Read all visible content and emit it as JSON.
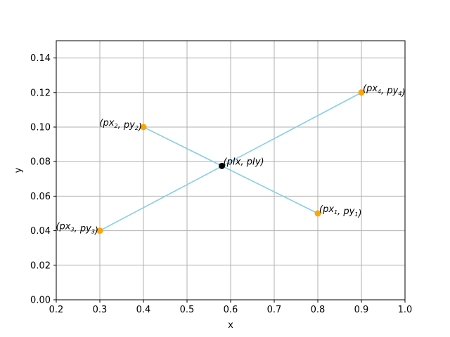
{
  "chart_data": {
    "type": "line",
    "title": "",
    "xlabel": "x",
    "ylabel": "y",
    "xlim": [
      0.2,
      1.0
    ],
    "ylim": [
      0.0,
      0.15
    ],
    "xticks": [
      0.2,
      0.3,
      0.4,
      0.5,
      0.6,
      0.7,
      0.8,
      0.9,
      1.0
    ],
    "xtick_labels": [
      "0.2",
      "0.3",
      "0.4",
      "0.5",
      "0.6",
      "0.7",
      "0.8",
      "0.9",
      "1.0"
    ],
    "yticks": [
      0.0,
      0.02,
      0.04,
      0.06,
      0.08,
      0.1,
      0.12,
      0.14
    ],
    "ytick_labels": [
      "0.00",
      "0.02",
      "0.04",
      "0.06",
      "0.08",
      "0.10",
      "0.12",
      "0.14"
    ],
    "grid": true,
    "series": [
      {
        "points": [
          [
            0.8,
            0.05
          ],
          [
            0.4,
            0.1
          ]
        ]
      },
      {
        "points": [
          [
            0.3,
            0.04
          ],
          [
            0.9,
            0.12
          ]
        ]
      }
    ],
    "points": [
      {
        "x": 0.8,
        "y": 0.05,
        "kind": "endpoint",
        "label": {
          "base": "(p",
          "parts": [
            [
              "x",
              "1"
            ],
            [
              "y",
              "1"
            ]
          ],
          "align": "left"
        }
      },
      {
        "x": 0.4,
        "y": 0.1,
        "kind": "endpoint",
        "label": {
          "base": "(p",
          "parts": [
            [
              "x",
              "2"
            ],
            [
              "y",
              "2"
            ]
          ],
          "align": "right"
        }
      },
      {
        "x": 0.3,
        "y": 0.04,
        "kind": "endpoint",
        "label": {
          "base": "(p",
          "parts": [
            [
              "x",
              "3"
            ],
            [
              "y",
              "3"
            ]
          ],
          "align": "right"
        }
      },
      {
        "x": 0.9,
        "y": 0.12,
        "kind": "endpoint",
        "label": {
          "base": "(p",
          "parts": [
            [
              "x",
              "4"
            ],
            [
              "y",
              "4"
            ]
          ],
          "align": "left"
        }
      },
      {
        "x": 0.58,
        "y": 0.0775,
        "kind": "intersection",
        "label": {
          "base": "(p",
          "parts": [
            [
              "Ix",
              ""
            ],
            [
              "Iy",
              ""
            ]
          ],
          "align": "left"
        }
      }
    ],
    "colors": {
      "line": "#87ceeb",
      "endpoint": "#ffa500",
      "intersection": "#000000",
      "grid": "#b0b0b0",
      "axes": "#000000"
    }
  }
}
